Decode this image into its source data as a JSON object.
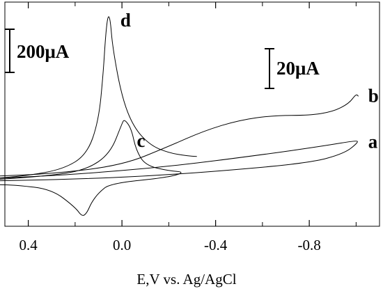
{
  "chart_data": {
    "type": "line",
    "title": "",
    "xlabel": "E,V vs. Ag/AgCl",
    "ylabel": "",
    "x_reversed": true,
    "xlim": [
      0.5,
      -1.1
    ],
    "ylim": [
      -380,
      1500
    ],
    "grid": false,
    "y_ticks_shown": false,
    "xticks": [
      {
        "value": 0.4,
        "label": "0.4"
      },
      {
        "value": 0.0,
        "label": "0.0"
      },
      {
        "value": -0.4,
        "label": "-0.4"
      },
      {
        "value": -0.8,
        "label": "-0.8"
      }
    ],
    "minor_xticks": [
      0.2,
      -0.2,
      -0.6,
      -1.0
    ],
    "scale_bars": [
      {
        "label": "200μA",
        "value": 200,
        "units": "μA",
        "applies_to": [
          "c",
          "d"
        ]
      },
      {
        "label": "20μA",
        "value": 20,
        "units": "μA",
        "applies_to": [
          "a",
          "b"
        ]
      }
    ],
    "series": [
      {
        "name": "a",
        "points": [
          [
            0.55,
            20
          ],
          [
            0.45,
            30
          ],
          [
            0.2,
            55
          ],
          [
            -0.2,
            120
          ],
          [
            -0.6,
            220
          ],
          [
            -0.85,
            290
          ],
          [
            -1.0,
            340
          ],
          [
            -1.01,
            325
          ],
          [
            -0.95,
            230
          ],
          [
            -0.8,
            150
          ],
          [
            -0.4,
            80
          ],
          [
            -0.1,
            40
          ],
          [
            0.2,
            15
          ],
          [
            0.45,
            5
          ],
          [
            0.55,
            0
          ]
        ]
      },
      {
        "name": "b",
        "points": [
          [
            0.55,
            40
          ],
          [
            0.3,
            60
          ],
          [
            0.0,
            130
          ],
          [
            -0.2,
            290
          ],
          [
            -0.35,
            420
          ],
          [
            -0.5,
            510
          ],
          [
            -0.65,
            550
          ],
          [
            -0.8,
            550
          ],
          [
            -0.9,
            580
          ],
          [
            -0.97,
            650
          ],
          [
            -1.0,
            730
          ],
          [
            -1.01,
            710
          ]
        ]
      },
      {
        "name": "c",
        "points": [
          [
            0.55,
            10
          ],
          [
            0.3,
            45
          ],
          [
            0.15,
            95
          ],
          [
            0.05,
            230
          ],
          [
            0.0,
            480
          ],
          [
            -0.01,
            520
          ],
          [
            -0.04,
            440
          ],
          [
            -0.06,
            260
          ],
          [
            -0.1,
            130
          ],
          [
            -0.2,
            85
          ],
          [
            -0.27,
            75
          ],
          [
            -0.2,
            30
          ],
          [
            0.05,
            -20
          ],
          [
            0.1,
            -100
          ],
          [
            0.13,
            -180
          ],
          [
            0.15,
            -270
          ],
          [
            0.17,
            -300
          ],
          [
            0.2,
            -220
          ],
          [
            0.3,
            -70
          ],
          [
            0.45,
            -35
          ],
          [
            0.55,
            -30
          ]
        ]
      },
      {
        "name": "d",
        "points": [
          [
            0.55,
            20
          ],
          [
            0.4,
            45
          ],
          [
            0.25,
            100
          ],
          [
            0.15,
            220
          ],
          [
            0.1,
            500
          ],
          [
            0.08,
            900
          ],
          [
            0.07,
            1220
          ],
          [
            0.06,
            1390
          ],
          [
            0.05,
            1360
          ],
          [
            0.04,
            1120
          ],
          [
            0.0,
            700
          ],
          [
            -0.05,
            450
          ],
          [
            -0.12,
            300
          ],
          [
            -0.2,
            235
          ],
          [
            -0.28,
            210
          ],
          [
            -0.32,
            205
          ]
        ]
      }
    ]
  }
}
